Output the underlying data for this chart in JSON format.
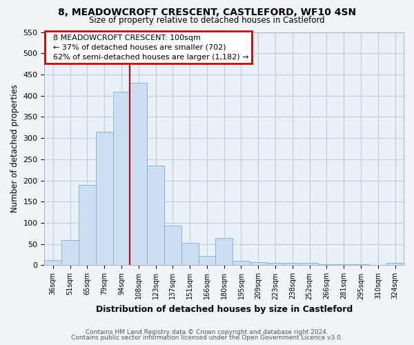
{
  "title_line1": "8, MEADOWCROFT CRESCENT, CASTLEFORD, WF10 4SN",
  "title_line2": "Size of property relative to detached houses in Castleford",
  "xlabel": "Distribution of detached houses by size in Castleford",
  "ylabel": "Number of detached properties",
  "categories": [
    "36sqm",
    "51sqm",
    "65sqm",
    "79sqm",
    "94sqm",
    "108sqm",
    "123sqm",
    "137sqm",
    "151sqm",
    "166sqm",
    "180sqm",
    "195sqm",
    "209sqm",
    "223sqm",
    "238sqm",
    "252sqm",
    "266sqm",
    "281sqm",
    "295sqm",
    "310sqm",
    "324sqm"
  ],
  "values": [
    12,
    60,
    190,
    315,
    410,
    430,
    235,
    93,
    52,
    22,
    65,
    10,
    8,
    5,
    5,
    5,
    2,
    2,
    2,
    0,
    5
  ],
  "bar_color": "#ccdff2",
  "bar_edge_color": "#8ab4d4",
  "vline_color": "#cc0000",
  "annotation_title": "8 MEADOWCROFT CRESCENT: 100sqm",
  "annotation_line2": "← 37% of detached houses are smaller (702)",
  "annotation_line3": "62% of semi-detached houses are larger (1,182) →",
  "annotation_box_color": "#ffffff",
  "annotation_box_edge": "#cc0000",
  "ylim": [
    0,
    550
  ],
  "yticks": [
    0,
    50,
    100,
    150,
    200,
    250,
    300,
    350,
    400,
    450,
    500,
    550
  ],
  "footer_line1": "Contains HM Land Registry data © Crown copyright and database right 2024.",
  "footer_line2": "Contains public sector information licensed under the Open Government Licence v3.0.",
  "bg_color": "#f0f4f8",
  "plot_bg_color": "#e8f0f8",
  "grid_color": "#c0ccd8"
}
